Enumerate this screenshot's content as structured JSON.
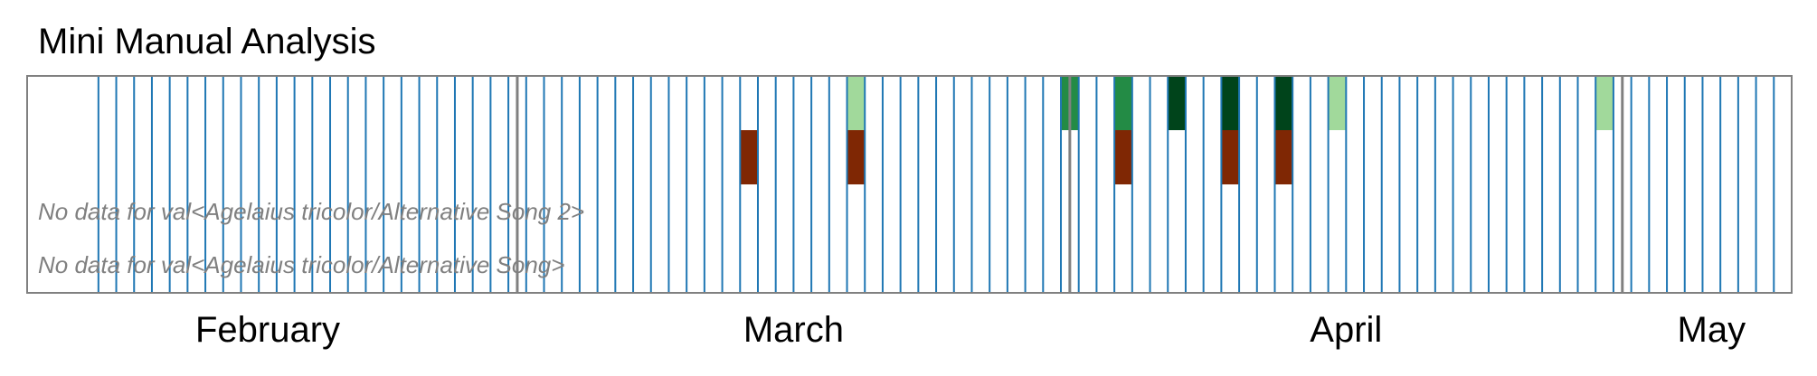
{
  "chart_data": {
    "type": "heatmap",
    "title": "Mini Manual Analysis",
    "month_labels": [
      "February",
      "March",
      "April",
      "May"
    ],
    "rows": [
      {
        "label": "",
        "colors": {
          "A": "#a1d99b",
          "B": "#41ab5d",
          "C": "#238b45",
          "D": "#00441b"
        }
      },
      {
        "label": "",
        "color": "#7f2704"
      },
      {
        "label": "No data for val<Agelaius tricolor/Alternative Song 2>"
      },
      {
        "label": "No data for val<Agelaius tricolor/Alternative Song>"
      }
    ],
    "recording_day_pairs": [
      4,
      6,
      8,
      10,
      12,
      14,
      16,
      18,
      20,
      22,
      24,
      26,
      28,
      30,
      32,
      34,
      36,
      38,
      40,
      42,
      44,
      46,
      48,
      50,
      52,
      54,
      56,
      58,
      60,
      62,
      64,
      66,
      68,
      70,
      72,
      74,
      76,
      78,
      80,
      82,
      84,
      86,
      88,
      90,
      92,
      94,
      96,
      98
    ],
    "gray_markers": [
      27.5,
      58.5,
      89.5
    ],
    "top_row_cells": [
      {
        "day": 46,
        "level": "A"
      },
      {
        "day": 58,
        "level": "C"
      },
      {
        "day": 61,
        "level": "C"
      },
      {
        "day": 64,
        "level": "D"
      },
      {
        "day": 67,
        "level": "D"
      },
      {
        "day": 70,
        "level": "D"
      },
      {
        "day": 73,
        "level": "A"
      },
      {
        "day": 88,
        "level": "A"
      }
    ],
    "second_row_cells": [
      40,
      46,
      61,
      67,
      70
    ],
    "xlim": [
      0,
      99
    ]
  }
}
